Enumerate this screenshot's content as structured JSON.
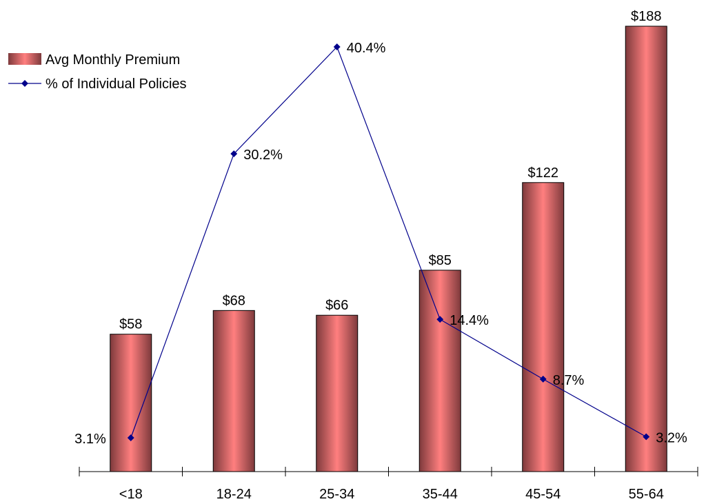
{
  "chart_data": {
    "type": "bar",
    "categories": [
      "<18",
      "18-24",
      "25-34",
      "35-44",
      "45-54",
      "55-64"
    ],
    "series": [
      {
        "name": "Avg Monthly Premium",
        "type": "bar",
        "values": [
          58,
          68,
          66,
          85,
          122,
          188
        ],
        "labels": [
          "$58",
          "$68",
          "$66",
          "$85",
          "$122",
          "$188"
        ],
        "color": "#ff7a7a"
      },
      {
        "name": "% of Individual Policies",
        "type": "line",
        "values": [
          3.1,
          30.2,
          40.4,
          14.4,
          8.7,
          3.2
        ],
        "labels": [
          "3.1%",
          "30.2%",
          "40.4%",
          "14.4%",
          "8.7%",
          "3.2%"
        ],
        "color": "#00008b"
      }
    ],
    "premium_range": [
      0,
      188
    ],
    "share_range": [
      0,
      44
    ],
    "legend_position": "top-left",
    "grid": false
  }
}
